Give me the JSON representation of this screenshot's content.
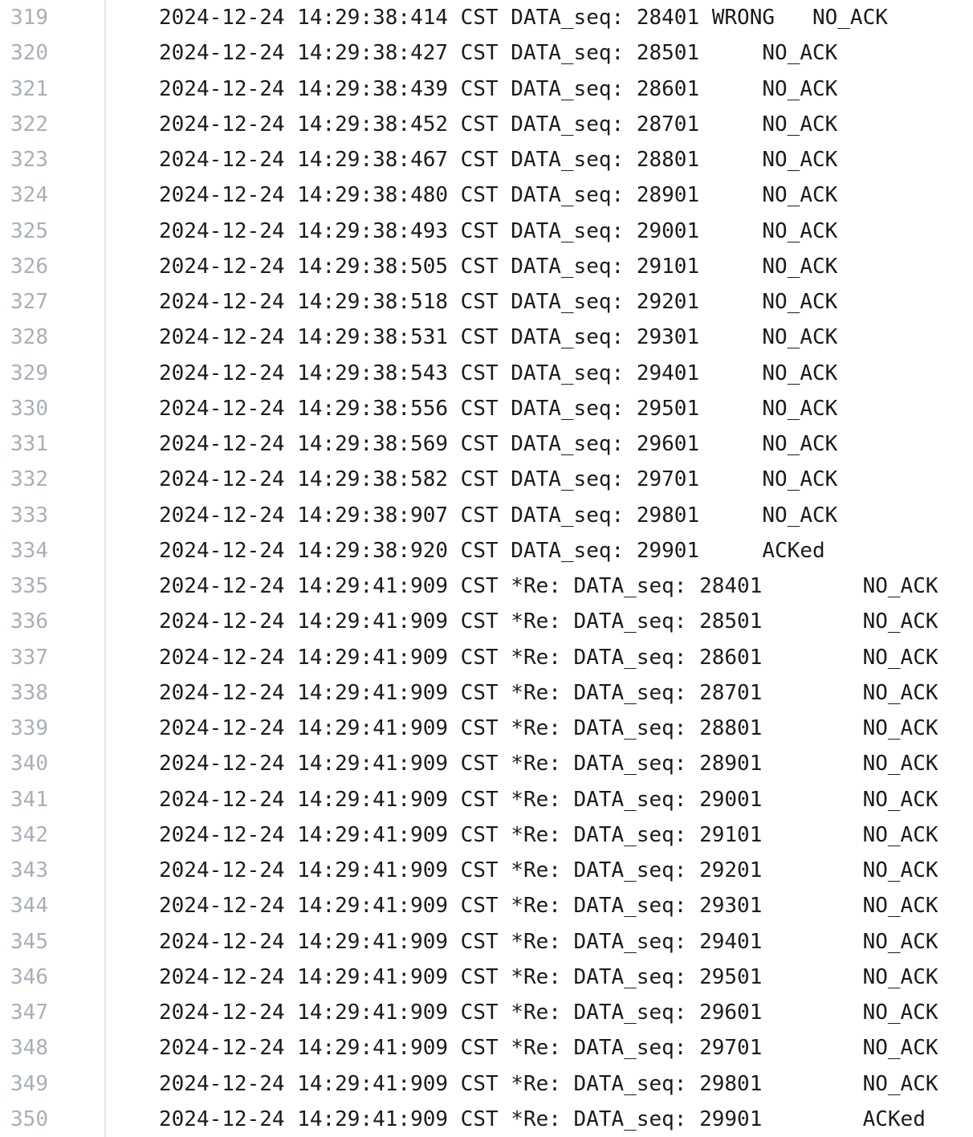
{
  "log_viewer": {
    "colors": {
      "background": "#ffffff",
      "text": "#1b1b1c",
      "line_number": "#a9aeb9",
      "divider": "#e4e4e6"
    },
    "lines": [
      {
        "num": "319",
        "text": "2024-12-24 14:29:38:414 CST DATA_seq: 28401 WRONG   NO_ACK"
      },
      {
        "num": "320",
        "text": "2024-12-24 14:29:38:427 CST DATA_seq: 28501     NO_ACK"
      },
      {
        "num": "321",
        "text": "2024-12-24 14:29:38:439 CST DATA_seq: 28601     NO_ACK"
      },
      {
        "num": "322",
        "text": "2024-12-24 14:29:38:452 CST DATA_seq: 28701     NO_ACK"
      },
      {
        "num": "323",
        "text": "2024-12-24 14:29:38:467 CST DATA_seq: 28801     NO_ACK"
      },
      {
        "num": "324",
        "text": "2024-12-24 14:29:38:480 CST DATA_seq: 28901     NO_ACK"
      },
      {
        "num": "325",
        "text": "2024-12-24 14:29:38:493 CST DATA_seq: 29001     NO_ACK"
      },
      {
        "num": "326",
        "text": "2024-12-24 14:29:38:505 CST DATA_seq: 29101     NO_ACK"
      },
      {
        "num": "327",
        "text": "2024-12-24 14:29:38:518 CST DATA_seq: 29201     NO_ACK"
      },
      {
        "num": "328",
        "text": "2024-12-24 14:29:38:531 CST DATA_seq: 29301     NO_ACK"
      },
      {
        "num": "329",
        "text": "2024-12-24 14:29:38:543 CST DATA_seq: 29401     NO_ACK"
      },
      {
        "num": "330",
        "text": "2024-12-24 14:29:38:556 CST DATA_seq: 29501     NO_ACK"
      },
      {
        "num": "331",
        "text": "2024-12-24 14:29:38:569 CST DATA_seq: 29601     NO_ACK"
      },
      {
        "num": "332",
        "text": "2024-12-24 14:29:38:582 CST DATA_seq: 29701     NO_ACK"
      },
      {
        "num": "333",
        "text": "2024-12-24 14:29:38:907 CST DATA_seq: 29801     NO_ACK"
      },
      {
        "num": "334",
        "text": "2024-12-24 14:29:38:920 CST DATA_seq: 29901     ACKed"
      },
      {
        "num": "335",
        "text": "2024-12-24 14:29:41:909 CST *Re: DATA_seq: 28401        NO_ACK"
      },
      {
        "num": "336",
        "text": "2024-12-24 14:29:41:909 CST *Re: DATA_seq: 28501        NO_ACK"
      },
      {
        "num": "337",
        "text": "2024-12-24 14:29:41:909 CST *Re: DATA_seq: 28601        NO_ACK"
      },
      {
        "num": "338",
        "text": "2024-12-24 14:29:41:909 CST *Re: DATA_seq: 28701        NO_ACK"
      },
      {
        "num": "339",
        "text": "2024-12-24 14:29:41:909 CST *Re: DATA_seq: 28801        NO_ACK"
      },
      {
        "num": "340",
        "text": "2024-12-24 14:29:41:909 CST *Re: DATA_seq: 28901        NO_ACK"
      },
      {
        "num": "341",
        "text": "2024-12-24 14:29:41:909 CST *Re: DATA_seq: 29001        NO_ACK"
      },
      {
        "num": "342",
        "text": "2024-12-24 14:29:41:909 CST *Re: DATA_seq: 29101        NO_ACK"
      },
      {
        "num": "343",
        "text": "2024-12-24 14:29:41:909 CST *Re: DATA_seq: 29201        NO_ACK"
      },
      {
        "num": "344",
        "text": "2024-12-24 14:29:41:909 CST *Re: DATA_seq: 29301        NO_ACK"
      },
      {
        "num": "345",
        "text": "2024-12-24 14:29:41:909 CST *Re: DATA_seq: 29401        NO_ACK"
      },
      {
        "num": "346",
        "text": "2024-12-24 14:29:41:909 CST *Re: DATA_seq: 29501        NO_ACK"
      },
      {
        "num": "347",
        "text": "2024-12-24 14:29:41:909 CST *Re: DATA_seq: 29601        NO_ACK"
      },
      {
        "num": "348",
        "text": "2024-12-24 14:29:41:909 CST *Re: DATA_seq: 29701        NO_ACK"
      },
      {
        "num": "349",
        "text": "2024-12-24 14:29:41:909 CST *Re: DATA_seq: 29801        NO_ACK"
      },
      {
        "num": "350",
        "text": "2024-12-24 14:29:41:909 CST *Re: DATA_seq: 29901        ACKed"
      }
    ]
  }
}
